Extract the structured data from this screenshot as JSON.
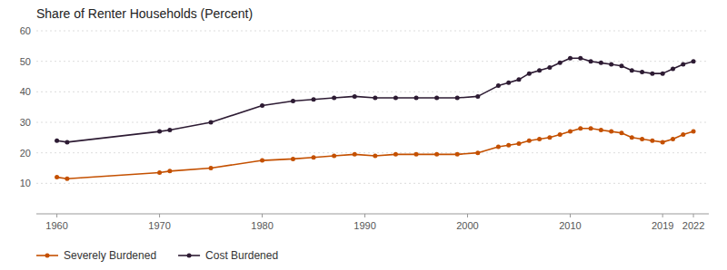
{
  "chart_data": {
    "type": "line",
    "title": "Share of Renter Households (Percent)",
    "x": [
      1960,
      1961,
      1970,
      1971,
      1975,
      1980,
      1983,
      1985,
      1987,
      1989,
      1991,
      1993,
      1995,
      1997,
      1999,
      2001,
      2003,
      2004,
      2005,
      2006,
      2007,
      2008,
      2009,
      2010,
      2011,
      2012,
      2013,
      2014,
      2015,
      2016,
      2017,
      2018,
      2019,
      2020,
      2021,
      2022
    ],
    "series": [
      {
        "name": "Cost Burdened",
        "color": "#2D1B33",
        "values": [
          24,
          23.5,
          27,
          27.5,
          30,
          35.5,
          37,
          37.5,
          38,
          38.5,
          38,
          38,
          38,
          38,
          38,
          38.5,
          42,
          43,
          44,
          46,
          47,
          48,
          49.5,
          51,
          51,
          50,
          49.5,
          49,
          48.5,
          47,
          46.5,
          46,
          46,
          47.5,
          49,
          50
        ]
      },
      {
        "name": "Severely Burdened",
        "color": "#C45000",
        "values": [
          12,
          11.5,
          13.5,
          14,
          15,
          17.5,
          18,
          18.5,
          19,
          19.5,
          19,
          19.5,
          19.5,
          19.5,
          19.5,
          20,
          22,
          22.5,
          23,
          24,
          24.5,
          25,
          26,
          27,
          28,
          28,
          27.5,
          27,
          26.5,
          25,
          24.5,
          24,
          23.5,
          24.5,
          26,
          27
        ]
      }
    ],
    "xlim": [
      1958,
      2023.5
    ],
    "xticks": [
      1960,
      1970,
      1980,
      1990,
      2000,
      2010,
      2019,
      2022
    ],
    "ylim": [
      0,
      60
    ],
    "yticks": [
      10,
      20,
      30,
      40,
      50,
      60
    ],
    "grid": true,
    "legend": "bottom",
    "marker": "circle"
  }
}
